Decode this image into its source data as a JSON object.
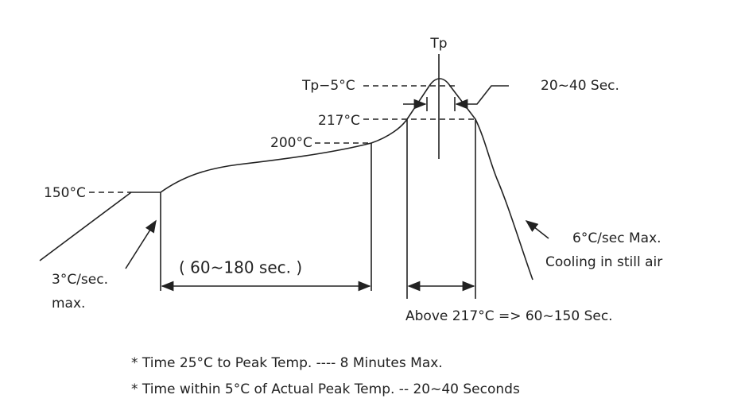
{
  "labels": {
    "tp": "Tp",
    "tp_minus_5": "Tp−5°C",
    "window_time": "20~40 Sec.",
    "t217": "217°C",
    "t200": "200°C",
    "t150": "150°C",
    "soak_time": "( 60~180 sec. )",
    "ramp_up_1": "3°C/sec.",
    "ramp_up_2": "max.",
    "cooling_1": "6°C/sec Max.",
    "cooling_2": "Cooling in still air",
    "above_217": "Above 217°C => 60~150 Sec."
  },
  "notes": [
    "* Time 25°C to Peak Temp. ---- 8 Minutes Max.",
    "* Time within 5°C of Actual Peak Temp. -- 20~40 Seconds"
  ]
}
